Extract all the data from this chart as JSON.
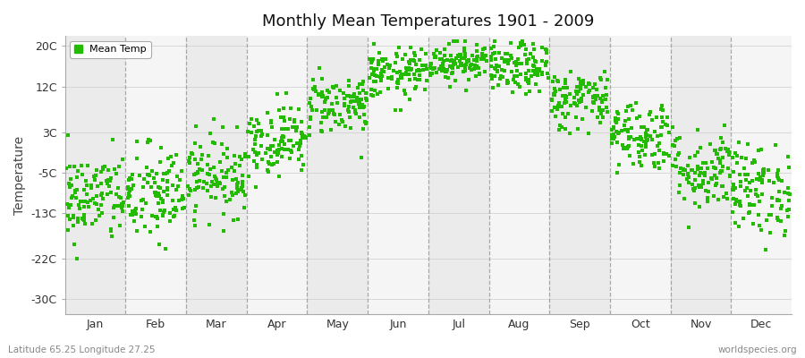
{
  "title": "Monthly Mean Temperatures 1901 - 2009",
  "ylabel": "Temperature",
  "month_labels": [
    "Jan",
    "Feb",
    "Mar",
    "Apr",
    "May",
    "Jun",
    "Jul",
    "Aug",
    "Sep",
    "Oct",
    "Nov",
    "Dec"
  ],
  "yticks": [
    -30,
    -22,
    -13,
    -5,
    3,
    12,
    20
  ],
  "ytick_labels": [
    "-30C",
    "-22C",
    "-13C",
    "-5C",
    "3C",
    "12C",
    "20C"
  ],
  "ylim": [
    -33,
    22
  ],
  "xlim": [
    0,
    12
  ],
  "dot_color": "#22bb00",
  "dot_size": 5,
  "fig_bg": "#ffffff",
  "plot_bg": "#ffffff",
  "band_colors": [
    "#ebebeb",
    "#f5f5f5"
  ],
  "dashed_line_color": "#888888",
  "legend_label": "Mean Temp",
  "footer_left": "Latitude 65.25 Longitude 27.25",
  "footer_right": "worldspecies.org",
  "monthly_means": [
    -10.0,
    -9.5,
    -5.5,
    1.5,
    8.5,
    14.5,
    17.0,
    15.5,
    9.5,
    2.5,
    -4.5,
    -8.5
  ],
  "monthly_stds": [
    4.5,
    5.0,
    4.0,
    3.5,
    3.0,
    2.5,
    2.0,
    2.5,
    3.0,
    3.5,
    4.0,
    4.5
  ],
  "n_years": 109,
  "seed": 42
}
